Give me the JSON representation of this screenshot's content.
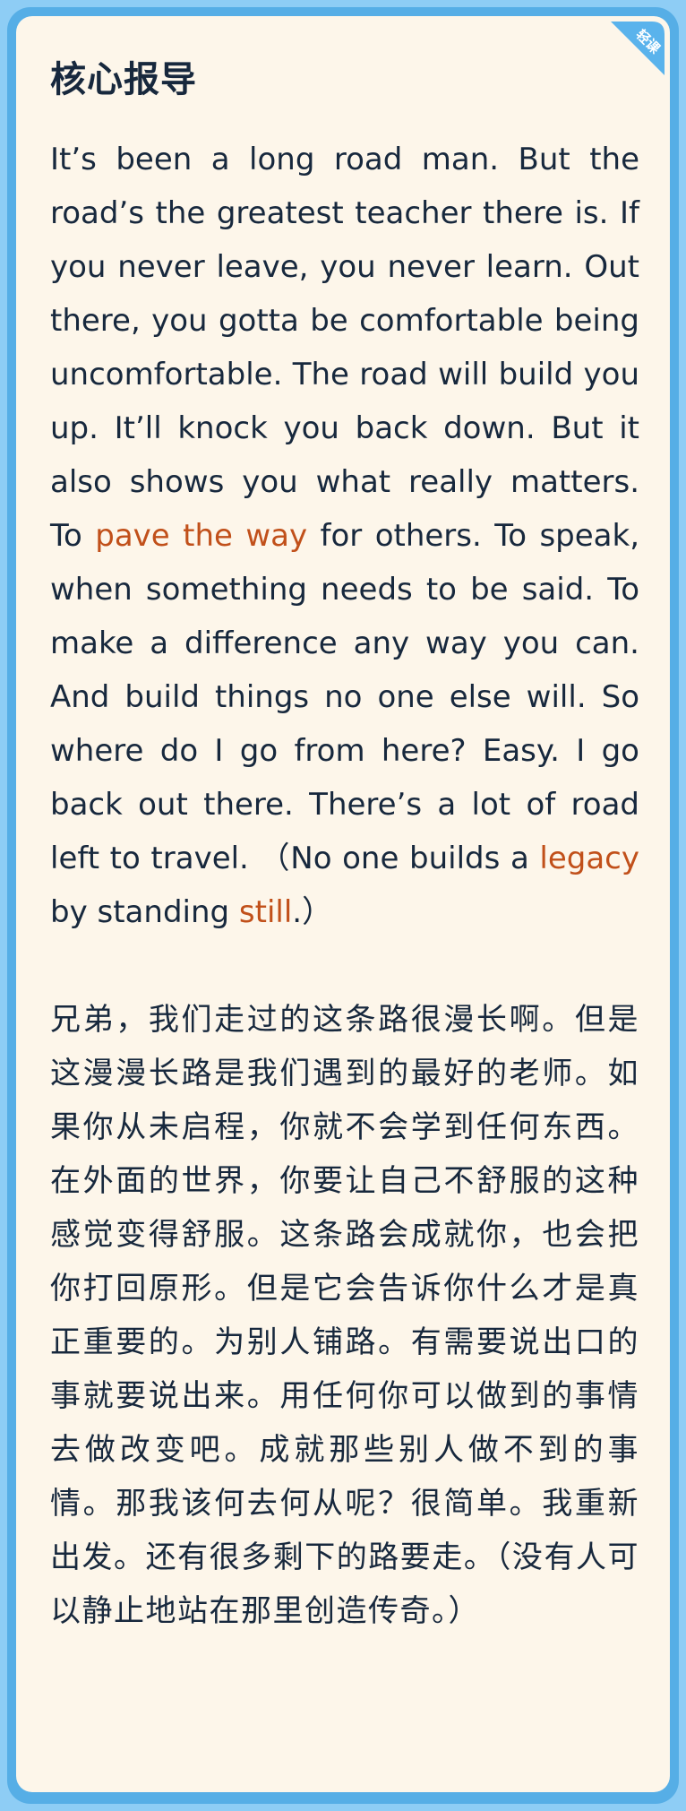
{
  "badge": {
    "text": "轻课",
    "color": "#5ab3ec"
  },
  "title": "核心报导",
  "english": {
    "part1": "It’s been a long road man. But the road’s the greatest teacher there is. If you never leave, you never learn. Out there, you gotta be comfortable being uncomfortable. The road will build you up. It’ll knock you back down. But it also shows you what really matters. To ",
    "highlight1": "pave the way",
    "part2": " for others. To speak, when something needs to be said. To make a difference any way you can. And build things no one else will. So where do I go from here? Easy. I go back out there. There’s a lot of road left to travel. （No one builds a ",
    "highlight2": "legacy",
    "part3": " by standing ",
    "highlight3": "still",
    "part4": ".）"
  },
  "chinese": "兄弟，我们走过的这条路很漫长啊。但是这漫漫长路是我们遇到的最好的老师。如果你从未启程，你就不会学到任何东西。在外面的世界，你要让自己不舒服的这种感觉变得舒服。这条路会成就你，也会把你打回原形。但是它会告诉你什么才是真正重要的。为别人铺路。有需要说出口的事就要说出来。用任何你可以做到的事情去做改变吧。成就那些别人做不到的事情。那我该何去何从呢？很简单。我重新出发。还有很多剩下的路要走。（没有人可以静止地站在那里创造传奇。）",
  "colors": {
    "background": "#8ecdf5",
    "frame": "#56aee6",
    "card": "#fdf6ea",
    "text": "#17283d",
    "highlight": "#c1501a"
  }
}
